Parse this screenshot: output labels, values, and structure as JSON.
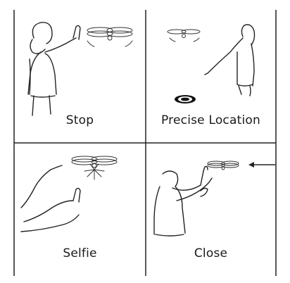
{
  "panels": [
    {
      "label": "Stop"
    },
    {
      "label": "Precise Location"
    },
    {
      "label": "Selfie"
    },
    {
      "label": "Close"
    }
  ]
}
